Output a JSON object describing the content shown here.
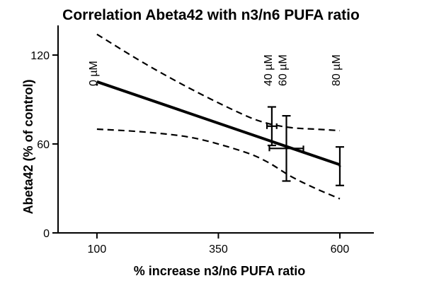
{
  "chart_data": {
    "type": "scatter",
    "title": "Correlation Abeta42 with n3/n6 PUFA ratio",
    "xlabel": "% increase n3/n6 PUFA ratio",
    "ylabel": "Abeta42 (% of control)",
    "xlim": [
      20,
      670
    ],
    "ylim": [
      0,
      140
    ],
    "x_ticks": [
      100,
      350,
      600
    ],
    "y_ticks": [
      0,
      60,
      120
    ],
    "points": [
      {
        "label": "0 µM",
        "x": 100,
        "y": 100,
        "xerr": 0,
        "yerr": 0
      },
      {
        "label": "40 µM",
        "x": 460,
        "y": 72,
        "xerr": 10,
        "yerr": 13
      },
      {
        "label": "60 µM",
        "x": 490,
        "y": 57,
        "xerr": 35,
        "yerr": 22
      },
      {
        "label": "80 µM",
        "x": 600,
        "y": 45,
        "xerr": 0,
        "yerr": 13
      }
    ],
    "regression": {
      "x": [
        100,
        600
      ],
      "y": [
        102,
        46
      ]
    },
    "confidence_band": {
      "upper": {
        "x": [
          100,
          200,
          300,
          400,
          450,
          500,
          550,
          600
        ],
        "y": [
          134,
          114,
          96,
          80,
          74,
          71,
          70,
          69
        ]
      },
      "lower": {
        "x": [
          100,
          200,
          300,
          400,
          450,
          500,
          550,
          600
        ],
        "y": [
          70,
          68,
          64,
          55,
          48,
          38,
          30,
          23
        ]
      }
    },
    "grid": false,
    "legend": "none"
  }
}
